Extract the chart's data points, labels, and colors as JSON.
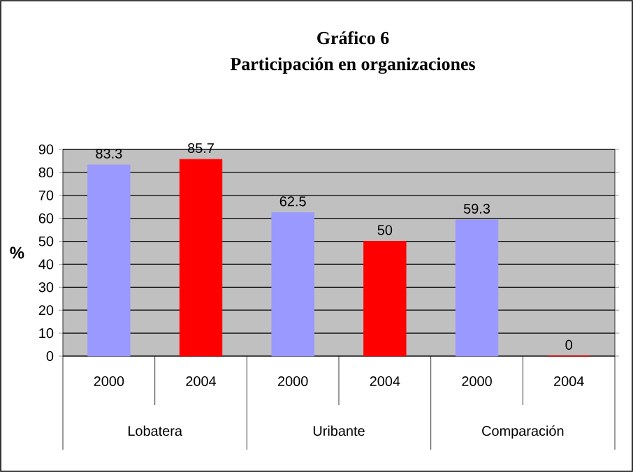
{
  "chart_data": {
    "type": "bar",
    "title": "Gráfico 6",
    "subtitle": "Participación en organizaciones",
    "ylabel": "%",
    "categories": [
      "Lobatera",
      "Uribante",
      "Comparación"
    ],
    "series": [
      {
        "name": "2000",
        "color": "#9999ff",
        "values": [
          83.3,
          62.5,
          59.3
        ]
      },
      {
        "name": "2004",
        "color": "#ff0000",
        "values": [
          85.7,
          50,
          0
        ]
      }
    ],
    "ylim": [
      0,
      90
    ],
    "yticks": [
      0,
      10,
      20,
      30,
      40,
      50,
      60,
      70,
      80,
      90
    ],
    "grid": "y",
    "data_labels": true
  }
}
